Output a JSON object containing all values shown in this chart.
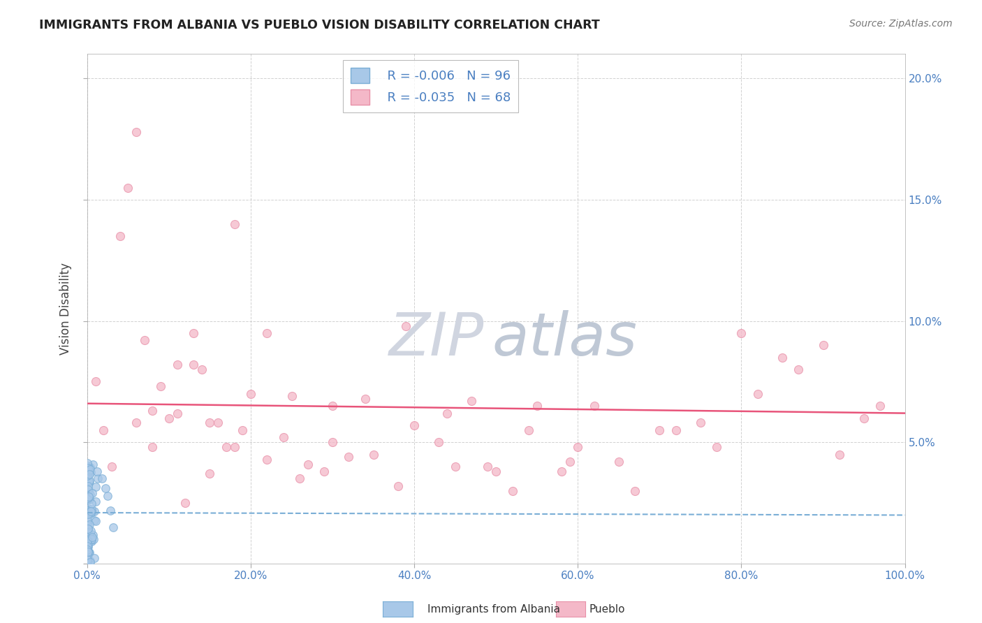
{
  "title": "IMMIGRANTS FROM ALBANIA VS PUEBLO VISION DISABILITY CORRELATION CHART",
  "source": "Source: ZipAtlas.com",
  "ylabel": "Vision Disability",
  "legend_label1": "Immigrants from Albania",
  "legend_label2": "Pueblo",
  "r1": -0.006,
  "n1": 96,
  "r2": -0.035,
  "n2": 68,
  "color1": "#a8c8e8",
  "color2": "#f4b8c8",
  "edge1": "#7aaed6",
  "edge2": "#e890a8",
  "trend1_color": "#7aaed6",
  "trend2_color": "#e8547a",
  "background": "#ffffff",
  "grid_color": "#cccccc",
  "xlim": [
    0.0,
    1.0
  ],
  "ylim": [
    0.0,
    0.21
  ],
  "xticks": [
    0.0,
    0.2,
    0.4,
    0.6,
    0.8,
    1.0
  ],
  "yticks": [
    0.0,
    0.05,
    0.1,
    0.15,
    0.2
  ],
  "xticklabels": [
    "0.0%",
    "20.0%",
    "40.0%",
    "60.0%",
    "80.0%",
    "100.0%"
  ],
  "yticklabels": [
    "",
    "5.0%",
    "10.0%",
    "15.0%",
    "20.0%"
  ],
  "tick_color": "#4a7fc1",
  "watermark_zip": "ZIP",
  "watermark_atlas": "atlas",
  "watermark_color_zip": "#d8dde8",
  "watermark_color_atlas": "#c8cfd8",
  "pink_trend_intercept": 0.066,
  "pink_trend_slope": -0.004,
  "blue_trend_intercept": 0.021,
  "blue_trend_slope": -0.001
}
